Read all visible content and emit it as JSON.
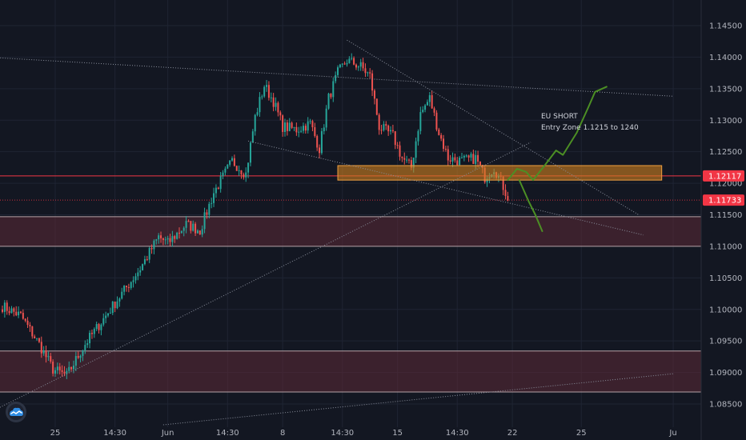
{
  "app": {
    "logo_icon": "tradingview-cloud-icon"
  },
  "annotation": {
    "line1": "EU SHORT",
    "line2": "Entry Zone 1.1215 to 1240"
  },
  "price_badges": [
    {
      "label": "1.12117",
      "value": 1.12117,
      "color": "#f23645"
    },
    {
      "label": "1.11733",
      "value": 1.11733,
      "color": "#f23645"
    }
  ],
  "colors": {
    "background": "#131722",
    "up": "#26a69a",
    "down": "#ef5350",
    "zone": "#5d2a36",
    "entry_zone": "#d1801f",
    "projection": "#4c8f24",
    "axis_text": "#b2b5be"
  },
  "chart_data": {
    "type": "candlestick",
    "symbol_hint": "EURUSD",
    "x_axis": {
      "ticks": [
        "25",
        "14:30",
        "Jun",
        "14:30",
        "8",
        "14:30",
        "15",
        "14:30",
        "22",
        "25",
        "Ju"
      ],
      "tick_index": [
        23,
        49,
        72,
        98,
        122,
        148,
        172,
        198,
        222,
        252,
        292
      ]
    },
    "y_axis": {
      "ticks": [
        "1.14500",
        "1.14000",
        "1.13500",
        "1.13000",
        "1.12500",
        "1.12000",
        "1.11500",
        "1.11000",
        "1.10500",
        "1.10000",
        "1.09500",
        "1.09000",
        "1.08500"
      ],
      "ylim": [
        1.083,
        1.149
      ]
    },
    "ohlc_waypoints": [
      [
        0,
        1.1005
      ],
      [
        8,
        1.099
      ],
      [
        16,
        1.0945
      ],
      [
        22,
        1.0905
      ],
      [
        28,
        1.0895
      ],
      [
        36,
        1.0945
      ],
      [
        44,
        1.0985
      ],
      [
        52,
        1.1025
      ],
      [
        60,
        1.1065
      ],
      [
        68,
        1.1115
      ],
      [
        72,
        1.1105
      ],
      [
        80,
        1.1135
      ],
      [
        86,
        1.1125
      ],
      [
        92,
        1.1185
      ],
      [
        100,
        1.1235
      ],
      [
        106,
        1.1215
      ],
      [
        110,
        1.1305
      ],
      [
        114,
        1.1355
      ],
      [
        118,
        1.133
      ],
      [
        122,
        1.129
      ],
      [
        128,
        1.1285
      ],
      [
        134,
        1.1295
      ],
      [
        138,
        1.1255
      ],
      [
        142,
        1.1335
      ],
      [
        146,
        1.1375
      ],
      [
        150,
        1.1395
      ],
      [
        156,
        1.1385
      ],
      [
        160,
        1.137
      ],
      [
        164,
        1.129
      ],
      [
        170,
        1.1275
      ],
      [
        174,
        1.124
      ],
      [
        178,
        1.1225
      ],
      [
        182,
        1.131
      ],
      [
        186,
        1.1335
      ],
      [
        190,
        1.128
      ],
      [
        194,
        1.124
      ],
      [
        200,
        1.1235
      ],
      [
        206,
        1.124
      ],
      [
        210,
        1.121
      ],
      [
        214,
        1.1225
      ],
      [
        218,
        1.1195
      ],
      [
        220,
        1.1178
      ]
    ],
    "zones": [
      {
        "name": "supply-zone",
        "y_low": 1.11,
        "y_high": 1.1147
      },
      {
        "name": "demand-zone",
        "y_low": 1.0869,
        "y_high": 1.0934
      },
      {
        "name": "entry-zone",
        "y_low": 1.1205,
        "y_high": 1.1228,
        "x_from": 146,
        "x_to": 287
      }
    ],
    "horizontal_lines": [
      {
        "value": 1.12117,
        "color": "#f23645",
        "style": "solid"
      },
      {
        "value": 1.11733,
        "color": "#f23645",
        "style": "dotted"
      }
    ],
    "trendlines": [
      {
        "from": [
          -2,
          1.1399
        ],
        "to": [
          292,
          1.1338
        ]
      },
      {
        "from": [
          150,
          1.1427
        ],
        "to": [
          277,
          1.115
        ]
      },
      {
        "from": [
          107,
          1.1267
        ],
        "to": [
          279,
          1.1118
        ]
      },
      {
        "from": [
          -2,
          1.0843
        ],
        "to": [
          230,
          1.1265
        ]
      },
      {
        "from": [
          70,
          1.0817
        ],
        "to": [
          292,
          1.0898
        ]
      }
    ],
    "projection_path": [
      [
        220,
        1.1205
      ],
      [
        224,
        1.1223
      ],
      [
        228,
        1.1218
      ],
      [
        231,
        1.1205
      ],
      [
        236,
        1.1228
      ],
      [
        241,
        1.1252
      ],
      [
        244,
        1.1245
      ],
      [
        250,
        1.128
      ],
      [
        255,
        1.132
      ],
      [
        258,
        1.1345
      ],
      [
        263,
        1.1353
      ]
    ],
    "projection_branch": [
      [
        225,
        1.1205
      ],
      [
        229,
        1.1172
      ],
      [
        232,
        1.115
      ],
      [
        235,
        1.1124
      ]
    ],
    "grid": true,
    "legend": "none"
  }
}
